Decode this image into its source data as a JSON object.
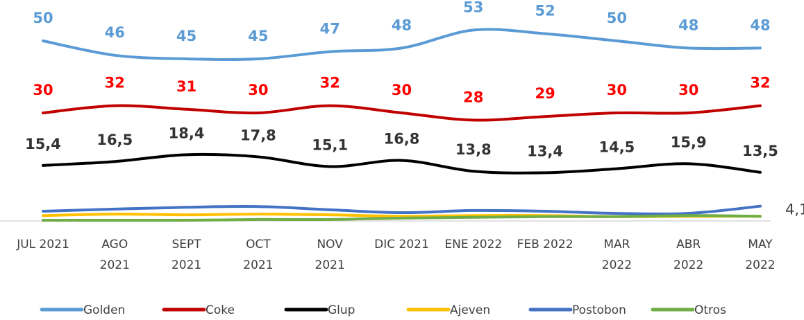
{
  "chart_data": {
    "type": "line",
    "categories": [
      "JUL 2021",
      "AGO\n2021",
      "SEPT\n2021",
      "OCT\n2021",
      "NOV\n2021",
      "DIC 2021",
      "ENE 2022",
      "FEB 2022",
      "MAR\n2022",
      "ABR\n2022",
      "MAY\n2022"
    ],
    "ylim": [
      0,
      60
    ],
    "legend": "bottom",
    "series": [
      {
        "name": "Golden",
        "color": "#5b9bd5",
        "label_color": "#5b9bd5",
        "values": [
          50,
          46,
          45,
          45,
          47,
          48,
          53,
          52,
          50,
          48,
          48
        ]
      },
      {
        "name": "Coke",
        "color": "#c00000",
        "label_color": "#ff0000",
        "values": [
          30,
          32,
          31,
          30,
          32,
          30,
          28,
          29,
          30,
          30,
          32
        ]
      },
      {
        "name": "Glup",
        "color": "#000000",
        "label_color": "#333333",
        "values": [
          15.4,
          16.5,
          18.4,
          17.8,
          15.1,
          16.8,
          13.8,
          13.4,
          14.5,
          15.9,
          13.5
        ],
        "value_labels": [
          "15,4",
          "16,5",
          "18,4",
          "17,8",
          "15,1",
          "16,8",
          "13,8",
          "13,4",
          "14,5",
          "15,9",
          "13,5"
        ]
      },
      {
        "name": "Ajeven",
        "color": "#ffc000",
        "values": [
          1.5,
          1.9,
          1.7,
          1.9,
          1.7,
          1.3,
          1.5,
          1.5,
          1.2,
          1.3,
          1.3
        ]
      },
      {
        "name": "Postobon",
        "color": "#4472c4",
        "label_color": "#404040",
        "values": [
          2.7,
          3.3,
          3.8,
          4.0,
          3.1,
          2.3,
          2.9,
          2.7,
          2.1,
          2.1,
          4.1
        ],
        "value_labels": [
          null,
          null,
          null,
          null,
          null,
          null,
          null,
          null,
          null,
          null,
          "4,1"
        ]
      },
      {
        "name": "Otros",
        "color": "#70ad47",
        "values": [
          0.2,
          0.2,
          0.2,
          0.4,
          0.4,
          0.8,
          1.0,
          1.2,
          1.2,
          1.5,
          1.3
        ]
      }
    ]
  }
}
